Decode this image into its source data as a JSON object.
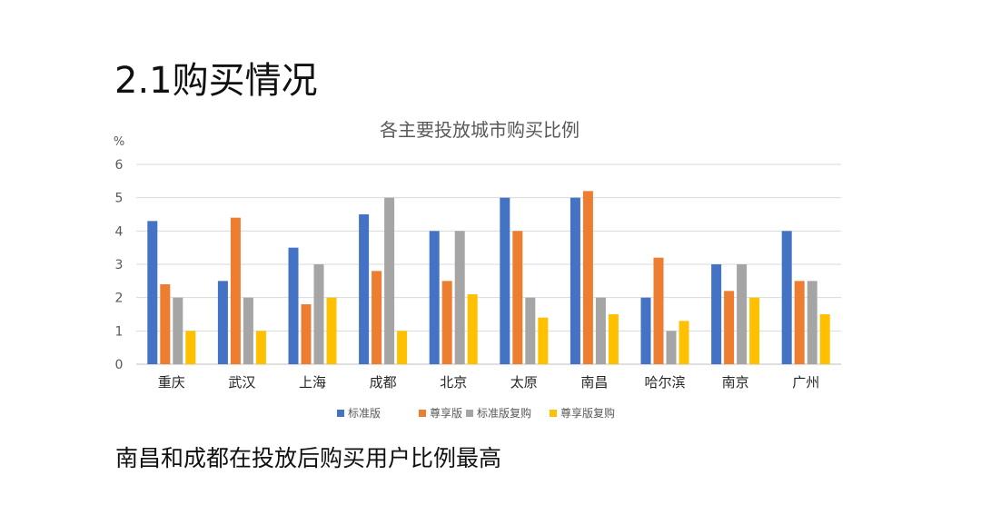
{
  "slide": {
    "title": "2.1购买情况",
    "conclusion": "南昌和成都在投放后购买用户比例最高"
  },
  "chart_data": {
    "type": "bar",
    "title": "各主要投放城市购买比例",
    "ylabel": "%",
    "xlabel": "",
    "ylim": [
      0,
      6
    ],
    "yticks": [
      0,
      1,
      2,
      3,
      4,
      5,
      6
    ],
    "grid": true,
    "legend_position": "bottom",
    "categories": [
      "重庆",
      "武汉",
      "上海",
      "成都",
      "北京",
      "太原",
      "南昌",
      "哈尔滨",
      "南京",
      "广州"
    ],
    "series": [
      {
        "name": "标准版",
        "color": "#4472C4",
        "values": [
          4.3,
          2.5,
          3.5,
          4.5,
          4.0,
          5.0,
          5.0,
          2.0,
          3.0,
          4.0
        ]
      },
      {
        "name": "尊享版",
        "color": "#ED7D31",
        "values": [
          2.4,
          4.4,
          1.8,
          2.8,
          2.5,
          4.0,
          5.2,
          3.2,
          2.2,
          2.5
        ]
      },
      {
        "name": "标准版复购",
        "color": "#A5A5A5",
        "values": [
          2.0,
          2.0,
          3.0,
          5.0,
          4.0,
          2.0,
          2.0,
          1.0,
          3.0,
          2.5
        ]
      },
      {
        "name": "尊享版复购",
        "color": "#FFC000",
        "values": [
          1.0,
          1.0,
          2.0,
          1.0,
          2.1,
          1.4,
          1.5,
          1.3,
          2.0,
          1.5
        ]
      }
    ]
  }
}
